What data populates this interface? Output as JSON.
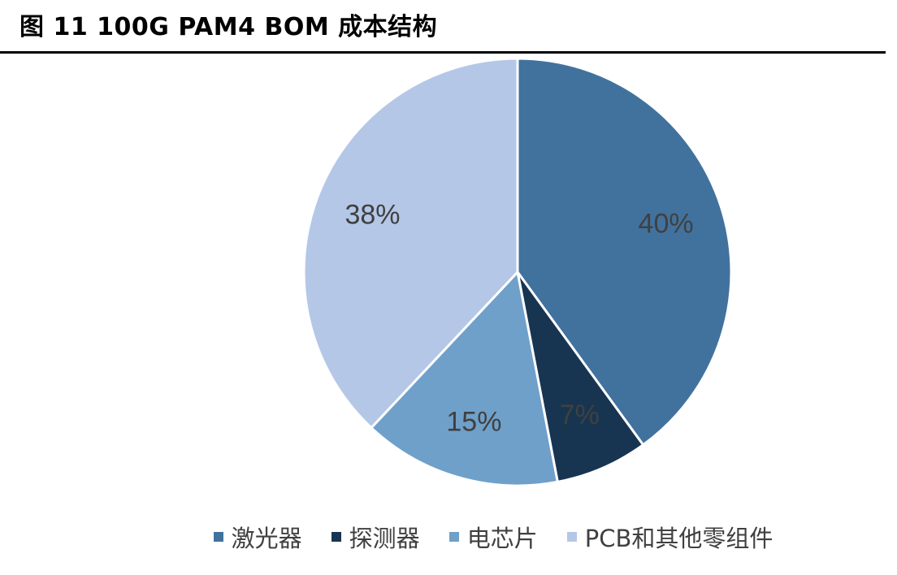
{
  "figure": {
    "title": "图 11 100G PAM4 BOM 成本结构"
  },
  "chart_data": {
    "type": "pie",
    "start_angle": "12 o'clock, clockwise",
    "slices": [
      {
        "label": "激光器",
        "value": 40,
        "data_label": "40%",
        "color": "#41729e"
      },
      {
        "label": "探测器",
        "value": 7,
        "data_label": "7%",
        "color": "#173551"
      },
      {
        "label": "电芯片",
        "value": 15,
        "data_label": "15%",
        "color": "#6fa0c9"
      },
      {
        "label": "PCB和其他零组件",
        "value": 38,
        "data_label": "38%",
        "color": "#b4c7e7"
      }
    ],
    "legend_position": "bottom",
    "slice_border_color": "#ffffff",
    "data_label_color": "#404040"
  }
}
